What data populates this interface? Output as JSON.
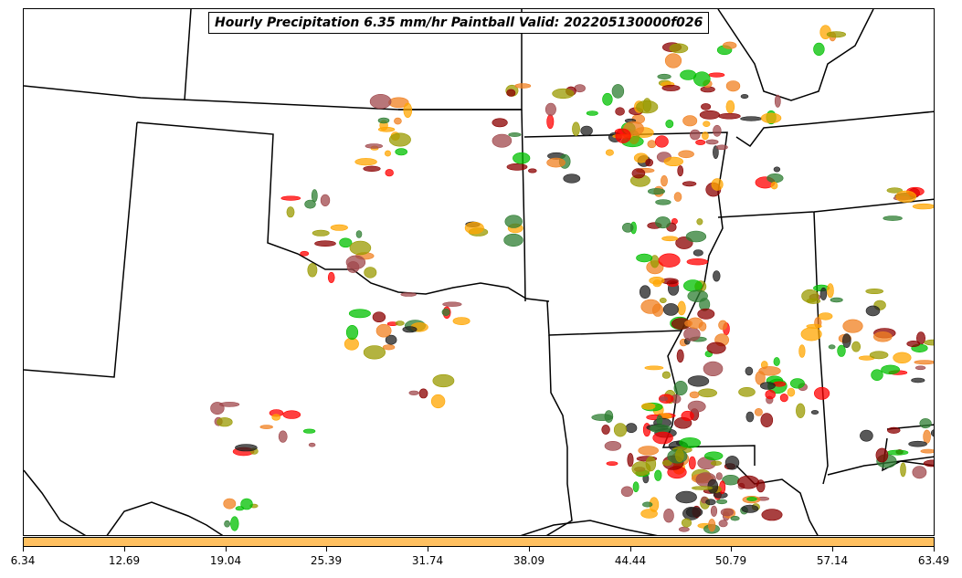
{
  "title": "Hourly Precipitation 6.35 mm/hr Paintball Valid: 202205130000f026",
  "colorbar": {
    "color": "#ffc060",
    "ticks": [
      "6.34",
      "12.69",
      "19.04",
      "25.39",
      "31.74",
      "38.09",
      "44.44",
      "50.79",
      "57.14",
      "63.49"
    ]
  },
  "member_colors": [
    "#8b0000",
    "#a0484c",
    "#ff0000",
    "#f08020",
    "#ffa500",
    "#9a9a00",
    "#2e7d32",
    "#00c000",
    "#202020"
  ]
}
